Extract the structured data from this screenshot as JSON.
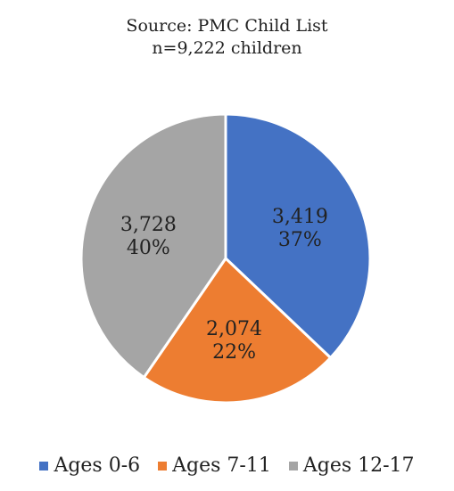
{
  "chart_data": {
    "type": "pie",
    "subtitle_lines": [
      "Source:  PMC Child List",
      "n=9,222 children"
    ],
    "slices": [
      {
        "name": "Ages 0-6",
        "value": 3419,
        "value_label": "3,419",
        "percent_label": "37%",
        "color": "#4472C4"
      },
      {
        "name": "Ages 7-11",
        "value": 2074,
        "value_label": "2,074",
        "percent_label": "22%",
        "color": "#ED7D31"
      },
      {
        "name": "Ages 12-17",
        "value": 3728,
        "value_label": "3,728",
        "percent_label": "40%",
        "color": "#A5A5A5"
      }
    ],
    "legend_position": "bottom"
  }
}
